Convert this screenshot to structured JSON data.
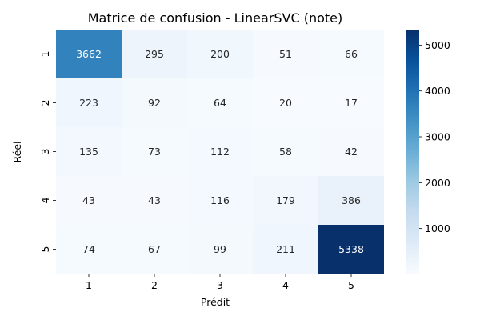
{
  "chart_data": {
    "type": "heatmap",
    "title": "Matrice de confusion - LinearSVC (note)",
    "xlabel": "Prédit",
    "ylabel": "Réel",
    "x_categories": [
      "1",
      "2",
      "3",
      "4",
      "5"
    ],
    "y_categories": [
      "1",
      "2",
      "3",
      "4",
      "5"
    ],
    "values": [
      [
        3662,
        295,
        200,
        51,
        66
      ],
      [
        223,
        92,
        64,
        20,
        17
      ],
      [
        135,
        73,
        112,
        58,
        42
      ],
      [
        43,
        43,
        116,
        179,
        386
      ],
      [
        74,
        67,
        99,
        211,
        5338
      ]
    ],
    "colormap": "Blues",
    "color_range": [
      17,
      5338
    ],
    "colorbar_ticks": [
      1000,
      2000,
      3000,
      4000,
      5000
    ]
  }
}
